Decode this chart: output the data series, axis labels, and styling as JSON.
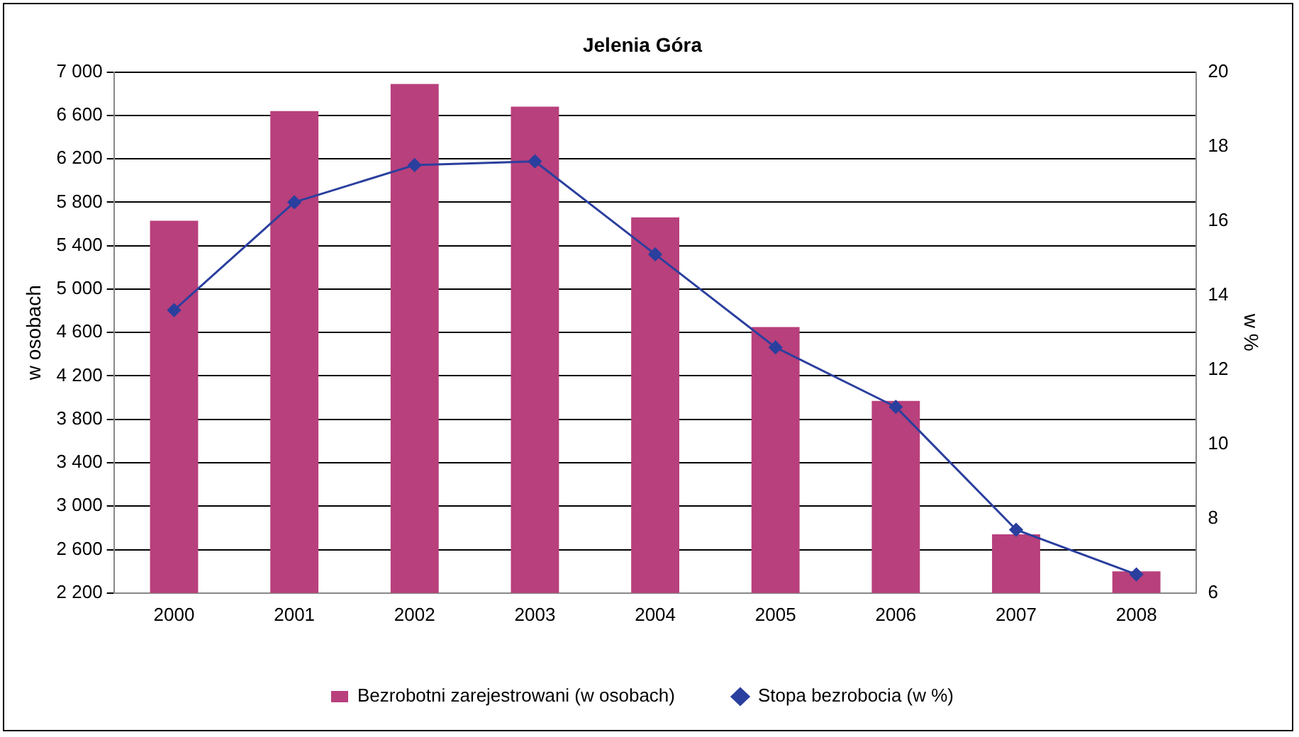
{
  "chart_data": {
    "type": "bar",
    "title": "Jelenia Góra",
    "categories": [
      "2000",
      "2001",
      "2002",
      "2003",
      "2004",
      "2005",
      "2006",
      "2007",
      "2008"
    ],
    "series": [
      {
        "name": "Bezrobotni zarejestrowani (w osobach)",
        "color": "#b8407c",
        "values": [
          5630,
          6640,
          6890,
          6680,
          5660,
          4650,
          3970,
          2740,
          2400
        ]
      },
      {
        "name": "Stopa bezrobocia (w %)",
        "type": "line",
        "axis": "y2",
        "color": "#2b3f9e",
        "marker": "diamond",
        "values": [
          13.6,
          16.5,
          17.5,
          17.6,
          15.1,
          12.6,
          11.0,
          7.7,
          6.5
        ]
      }
    ],
    "ylabel": "w osobach",
    "y2label": "w %",
    "ylim": [
      2200,
      7000
    ],
    "yticks": [
      {
        "value": 2200,
        "label": "2 200"
      },
      {
        "value": 2600,
        "label": "2 600"
      },
      {
        "value": 3000,
        "label": "3 000"
      },
      {
        "value": 3400,
        "label": "3 400"
      },
      {
        "value": 3800,
        "label": "3 800"
      },
      {
        "value": 4200,
        "label": "4 200"
      },
      {
        "value": 4600,
        "label": "4 600"
      },
      {
        "value": 5000,
        "label": "5 000"
      },
      {
        "value": 5400,
        "label": "5 400"
      },
      {
        "value": 5800,
        "label": "5 800"
      },
      {
        "value": 6200,
        "label": "6 200"
      },
      {
        "value": 6600,
        "label": "6 600"
      },
      {
        "value": 7000,
        "label": "7 000"
      }
    ],
    "y2lim": [
      6,
      20
    ],
    "y2ticks": [
      6,
      8,
      10,
      12,
      14,
      16,
      18,
      20
    ],
    "grid": "y",
    "legend": "bottom"
  }
}
